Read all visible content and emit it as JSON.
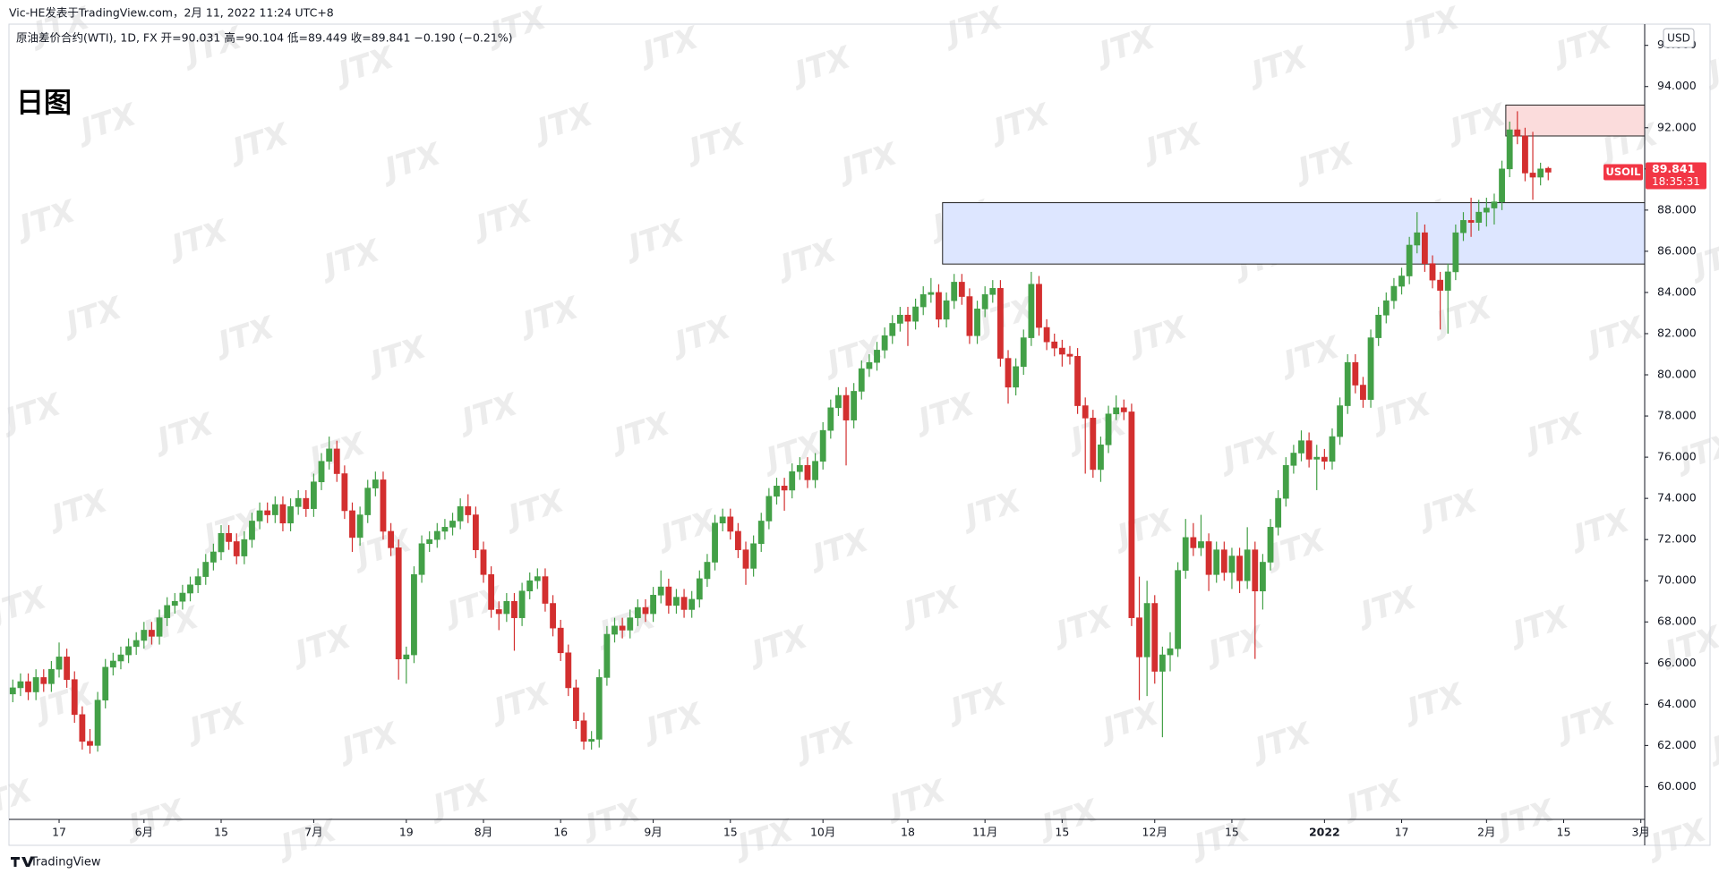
{
  "header": {
    "byline": "Vic-HE发表于TradingView.com，2月 11, 2022 11:24 UTC+8",
    "symbol_line": "原油差价合约(WTI), 1D, FX  开=90.031  高=90.104  低=89.449  收=89.841  −0.190 (−0.21%)"
  },
  "chart_data": {
    "type": "candlestick",
    "title": "日图",
    "symbol": "USOIL",
    "currency": "USD",
    "watermark": "JTX",
    "branding": "TradingView",
    "up_color": "#43a047",
    "down_color": "#d32f2f",
    "ylim": [
      58.41,
      97.03
    ],
    "yticks": [
      {
        "value": 60,
        "label": "60.000"
      },
      {
        "value": 62,
        "label": "62.000"
      },
      {
        "value": 64,
        "label": "64.000"
      },
      {
        "value": 66,
        "label": "66.000"
      },
      {
        "value": 68,
        "label": "68.000"
      },
      {
        "value": 70,
        "label": "70.000"
      },
      {
        "value": 72,
        "label": "72.000"
      },
      {
        "value": 74,
        "label": "74.000"
      },
      {
        "value": 76,
        "label": "76.000"
      },
      {
        "value": 78,
        "label": "78.000"
      },
      {
        "value": 80,
        "label": "80.000"
      },
      {
        "value": 82,
        "label": "82.000"
      },
      {
        "value": 84,
        "label": "84.000"
      },
      {
        "value": 86,
        "label": "86.000"
      },
      {
        "value": 88,
        "label": "88.000"
      },
      {
        "value": 90,
        "label": "90.000"
      },
      {
        "value": 92,
        "label": "92.000"
      },
      {
        "value": 94,
        "label": "94.000"
      },
      {
        "value": 96,
        "label": "96.000"
      }
    ],
    "last_price": {
      "value": 89.841,
      "countdown": "18:35:31",
      "color": "#f23645"
    },
    "zones": [
      {
        "start": 121,
        "top": 88.36,
        "bottom": 85.38,
        "color": "#dde6ff"
      },
      {
        "start": 194,
        "top": 93.1,
        "bottom": 91.6,
        "color": "#fbdcdc"
      }
    ],
    "categories": [
      null,
      null,
      null,
      null,
      null,
      null,
      "17",
      null,
      null,
      null,
      null,
      null,
      null,
      null,
      null,
      null,
      null,
      "6月",
      null,
      null,
      null,
      null,
      null,
      null,
      null,
      null,
      null,
      "15",
      null,
      null,
      null,
      null,
      null,
      null,
      null,
      null,
      null,
      null,
      null,
      "7月",
      null,
      null,
      null,
      null,
      null,
      null,
      null,
      null,
      null,
      null,
      null,
      "19",
      null,
      null,
      null,
      null,
      null,
      null,
      null,
      null,
      null,
      "8月",
      null,
      null,
      null,
      null,
      null,
      null,
      null,
      null,
      null,
      "16",
      null,
      null,
      null,
      null,
      null,
      null,
      null,
      null,
      null,
      null,
      null,
      "9月",
      null,
      null,
      null,
      null,
      null,
      null,
      null,
      null,
      null,
      "15",
      null,
      null,
      null,
      null,
      null,
      null,
      null,
      null,
      null,
      null,
      null,
      "10月",
      null,
      null,
      null,
      null,
      null,
      null,
      null,
      null,
      null,
      null,
      "18",
      null,
      null,
      null,
      null,
      null,
      null,
      null,
      null,
      null,
      "11月",
      null,
      null,
      null,
      null,
      null,
      null,
      null,
      null,
      null,
      "15",
      null,
      null,
      null,
      null,
      null,
      null,
      null,
      null,
      null,
      null,
      null,
      "12月",
      null,
      null,
      null,
      null,
      null,
      null,
      null,
      null,
      null,
      "15",
      null,
      null,
      null,
      null,
      null,
      null,
      null,
      null,
      null,
      null,
      null,
      "2022",
      null,
      null,
      null,
      null,
      null,
      null,
      null,
      null,
      null,
      "17",
      null,
      null,
      null,
      null,
      null,
      null,
      null,
      null,
      null,
      null,
      "2月",
      null,
      null,
      null,
      null,
      null,
      null,
      null,
      null,
      null,
      "15",
      null,
      null,
      null,
      null,
      null,
      null,
      null,
      null,
      null,
      "3月"
    ],
    "candles": [
      [
        64.5,
        65.2,
        64.1,
        64.8
      ],
      [
        64.8,
        65.5,
        64.4,
        65.1
      ],
      [
        65.1,
        65.5,
        64.2,
        64.6
      ],
      [
        64.6,
        65.7,
        64.2,
        65.3
      ],
      [
        65.3,
        65.7,
        64.6,
        65.0
      ],
      [
        65.0,
        66.1,
        64.6,
        65.7
      ],
      [
        65.7,
        67.0,
        65.3,
        66.3
      ],
      [
        66.3,
        66.7,
        64.8,
        65.2
      ],
      [
        65.2,
        65.6,
        63.1,
        63.5
      ],
      [
        63.5,
        63.9,
        61.8,
        62.2
      ],
      [
        62.2,
        62.8,
        61.6,
        62.0
      ],
      [
        62.0,
        64.6,
        61.7,
        64.2
      ],
      [
        64.2,
        66.2,
        63.8,
        65.8
      ],
      [
        65.8,
        66.5,
        65.4,
        66.1
      ],
      [
        66.1,
        66.8,
        65.7,
        66.4
      ],
      [
        66.4,
        67.2,
        66.0,
        66.8
      ],
      [
        66.8,
        67.5,
        66.4,
        67.1
      ],
      [
        67.1,
        68.0,
        66.7,
        67.6
      ],
      [
        67.6,
        68.0,
        66.9,
        67.3
      ],
      [
        67.3,
        68.6,
        66.9,
        68.2
      ],
      [
        68.2,
        69.2,
        67.8,
        68.8
      ],
      [
        68.8,
        69.4,
        68.4,
        69.0
      ],
      [
        69.0,
        69.8,
        68.6,
        69.4
      ],
      [
        69.4,
        70.2,
        69.0,
        69.8
      ],
      [
        69.8,
        70.6,
        69.4,
        70.2
      ],
      [
        70.2,
        71.3,
        69.8,
        70.9
      ],
      [
        70.9,
        71.8,
        70.5,
        71.4
      ],
      [
        71.4,
        72.7,
        71.0,
        72.3
      ],
      [
        72.3,
        72.7,
        71.5,
        71.9
      ],
      [
        71.9,
        72.3,
        70.8,
        71.2
      ],
      [
        71.2,
        72.4,
        70.8,
        72.0
      ],
      [
        72.0,
        73.3,
        71.6,
        72.9
      ],
      [
        72.9,
        73.8,
        72.5,
        73.4
      ],
      [
        73.4,
        73.8,
        72.8,
        73.2
      ],
      [
        73.2,
        74.1,
        72.8,
        73.7
      ],
      [
        73.7,
        74.1,
        72.4,
        72.8
      ],
      [
        72.8,
        74.0,
        72.4,
        73.6
      ],
      [
        73.6,
        74.4,
        73.2,
        74.0
      ],
      [
        74.0,
        74.4,
        73.1,
        73.5
      ],
      [
        73.5,
        75.2,
        73.1,
        74.8
      ],
      [
        74.8,
        76.2,
        74.4,
        75.8
      ],
      [
        75.8,
        77.0,
        75.4,
        76.4
      ],
      [
        76.4,
        76.8,
        74.8,
        75.2
      ],
      [
        75.2,
        75.6,
        73.0,
        73.4
      ],
      [
        73.4,
        73.8,
        71.4,
        72.1
      ],
      [
        72.1,
        73.6,
        71.7,
        73.2
      ],
      [
        73.2,
        74.9,
        72.8,
        74.5
      ],
      [
        74.5,
        75.3,
        74.1,
        74.9
      ],
      [
        74.9,
        75.3,
        72.0,
        72.4
      ],
      [
        72.4,
        72.8,
        71.2,
        71.6
      ],
      [
        71.6,
        72.0,
        65.2,
        66.2
      ],
      [
        66.2,
        66.8,
        65.0,
        66.4
      ],
      [
        66.4,
        70.7,
        66.0,
        70.3
      ],
      [
        70.3,
        72.2,
        69.9,
        71.8
      ],
      [
        71.8,
        72.4,
        71.4,
        72.0
      ],
      [
        72.0,
        72.8,
        71.6,
        72.4
      ],
      [
        72.4,
        73.0,
        72.0,
        72.6
      ],
      [
        72.6,
        73.3,
        72.2,
        72.9
      ],
      [
        72.9,
        74.0,
        72.5,
        73.6
      ],
      [
        73.6,
        74.2,
        72.8,
        73.2
      ],
      [
        73.2,
        73.6,
        71.1,
        71.5
      ],
      [
        71.5,
        71.9,
        69.9,
        70.3
      ],
      [
        70.3,
        70.7,
        68.2,
        68.6
      ],
      [
        68.6,
        69.0,
        67.6,
        68.4
      ],
      [
        68.4,
        69.4,
        68.0,
        69.0
      ],
      [
        69.0,
        69.4,
        66.6,
        68.2
      ],
      [
        68.2,
        69.9,
        67.8,
        69.5
      ],
      [
        69.5,
        70.4,
        69.1,
        70.0
      ],
      [
        70.0,
        70.6,
        69.6,
        70.2
      ],
      [
        70.2,
        70.6,
        68.5,
        68.9
      ],
      [
        68.9,
        69.3,
        67.3,
        67.7
      ],
      [
        67.7,
        68.1,
        66.1,
        66.5
      ],
      [
        66.5,
        66.9,
        64.4,
        64.8
      ],
      [
        64.8,
        65.2,
        62.8,
        63.2
      ],
      [
        63.2,
        63.6,
        61.8,
        62.2
      ],
      [
        62.2,
        62.7,
        61.8,
        62.3
      ],
      [
        62.3,
        65.7,
        61.9,
        65.3
      ],
      [
        65.3,
        67.8,
        64.9,
        67.4
      ],
      [
        67.4,
        68.2,
        67.0,
        67.8
      ],
      [
        67.8,
        68.2,
        67.2,
        67.6
      ],
      [
        67.6,
        68.6,
        67.2,
        68.2
      ],
      [
        68.2,
        69.1,
        67.8,
        68.7
      ],
      [
        68.7,
        69.1,
        68.0,
        68.4
      ],
      [
        68.4,
        69.7,
        68.0,
        69.3
      ],
      [
        69.3,
        70.5,
        68.9,
        69.7
      ],
      [
        69.7,
        70.1,
        68.4,
        68.8
      ],
      [
        68.8,
        69.6,
        68.4,
        69.2
      ],
      [
        69.2,
        69.6,
        68.2,
        68.6
      ],
      [
        68.6,
        69.5,
        68.2,
        69.1
      ],
      [
        69.1,
        70.5,
        68.7,
        70.1
      ],
      [
        70.1,
        71.3,
        69.7,
        70.9
      ],
      [
        70.9,
        73.2,
        70.5,
        72.8
      ],
      [
        72.8,
        73.5,
        72.4,
        73.1
      ],
      [
        73.1,
        73.5,
        72.0,
        72.4
      ],
      [
        72.4,
        72.8,
        71.1,
        71.5
      ],
      [
        71.5,
        71.9,
        69.8,
        70.6
      ],
      [
        70.6,
        72.2,
        70.2,
        71.8
      ],
      [
        71.8,
        73.3,
        71.4,
        72.9
      ],
      [
        72.9,
        74.5,
        72.5,
        74.1
      ],
      [
        74.1,
        75.0,
        73.7,
        74.6
      ],
      [
        74.6,
        75.0,
        73.4,
        74.4
      ],
      [
        74.4,
        75.7,
        74.0,
        75.3
      ],
      [
        75.3,
        76.0,
        74.9,
        75.6
      ],
      [
        75.6,
        76.0,
        74.5,
        74.9
      ],
      [
        74.9,
        76.2,
        74.5,
        75.8
      ],
      [
        75.8,
        77.7,
        75.4,
        77.3
      ],
      [
        77.3,
        78.8,
        76.9,
        78.4
      ],
      [
        78.4,
        79.4,
        78.0,
        79.0
      ],
      [
        79.0,
        79.4,
        75.6,
        77.8
      ],
      [
        77.8,
        79.6,
        77.4,
        79.2
      ],
      [
        79.2,
        80.7,
        78.8,
        80.3
      ],
      [
        80.3,
        81.0,
        79.9,
        80.6
      ],
      [
        80.6,
        81.6,
        80.2,
        81.2
      ],
      [
        81.2,
        82.3,
        80.8,
        81.9
      ],
      [
        81.9,
        82.9,
        81.5,
        82.5
      ],
      [
        82.5,
        83.3,
        82.1,
        82.9
      ],
      [
        82.9,
        83.3,
        81.4,
        82.6
      ],
      [
        82.6,
        83.7,
        82.2,
        83.3
      ],
      [
        83.3,
        84.3,
        82.9,
        83.9
      ],
      [
        83.9,
        84.7,
        83.5,
        84.0
      ],
      [
        84.0,
        84.4,
        82.3,
        82.7
      ],
      [
        82.7,
        84.0,
        82.3,
        83.6
      ],
      [
        83.6,
        84.9,
        83.2,
        84.5
      ],
      [
        84.5,
        84.9,
        83.4,
        83.8
      ],
      [
        83.8,
        84.2,
        81.5,
        81.9
      ],
      [
        81.9,
        83.6,
        81.5,
        83.2
      ],
      [
        83.2,
        84.3,
        82.8,
        83.9
      ],
      [
        83.9,
        84.6,
        83.5,
        84.2
      ],
      [
        84.2,
        84.6,
        80.4,
        80.8
      ],
      [
        80.8,
        81.2,
        78.6,
        79.4
      ],
      [
        79.4,
        80.8,
        79.0,
        80.4
      ],
      [
        80.4,
        82.2,
        80.0,
        81.8
      ],
      [
        81.8,
        85.0,
        81.4,
        84.4
      ],
      [
        84.4,
        84.8,
        81.9,
        82.3
      ],
      [
        82.3,
        82.7,
        81.2,
        81.6
      ],
      [
        81.6,
        82.0,
        80.9,
        81.3
      ],
      [
        81.3,
        81.7,
        80.4,
        81.0
      ],
      [
        81.0,
        81.4,
        80.5,
        80.9
      ],
      [
        80.9,
        81.3,
        78.1,
        78.5
      ],
      [
        78.5,
        78.9,
        75.2,
        77.9
      ],
      [
        77.9,
        78.3,
        75.0,
        75.4
      ],
      [
        75.4,
        77.0,
        74.8,
        76.6
      ],
      [
        76.6,
        78.5,
        76.2,
        78.1
      ],
      [
        78.1,
        79.0,
        77.8,
        78.4
      ],
      [
        78.4,
        78.8,
        77.8,
        78.2
      ],
      [
        78.2,
        78.6,
        67.8,
        68.2
      ],
      [
        68.2,
        70.2,
        64.2,
        66.3
      ],
      [
        66.3,
        70.0,
        64.4,
        68.9
      ],
      [
        68.9,
        69.3,
        65.0,
        65.6
      ],
      [
        65.6,
        66.8,
        62.4,
        66.4
      ],
      [
        66.4,
        67.5,
        65.6,
        66.7
      ],
      [
        66.7,
        70.9,
        66.3,
        70.5
      ],
      [
        70.5,
        73.0,
        70.1,
        72.1
      ],
      [
        72.1,
        72.8,
        71.2,
        71.6
      ],
      [
        71.6,
        73.2,
        71.2,
        71.9
      ],
      [
        71.9,
        72.3,
        69.5,
        70.3
      ],
      [
        70.3,
        71.9,
        69.9,
        71.5
      ],
      [
        71.5,
        71.9,
        70.0,
        70.4
      ],
      [
        70.4,
        71.6,
        69.6,
        71.2
      ],
      [
        71.2,
        71.6,
        69.4,
        70.0
      ],
      [
        70.0,
        72.6,
        69.6,
        71.5
      ],
      [
        71.5,
        71.9,
        66.2,
        69.5
      ],
      [
        69.5,
        71.3,
        68.6,
        70.9
      ],
      [
        70.9,
        73.0,
        70.5,
        72.6
      ],
      [
        72.6,
        74.4,
        72.2,
        74.0
      ],
      [
        74.0,
        76.0,
        73.6,
        75.6
      ],
      [
        75.6,
        76.6,
        75.2,
        76.2
      ],
      [
        76.2,
        77.3,
        75.8,
        76.8
      ],
      [
        76.8,
        77.2,
        75.5,
        75.9
      ],
      [
        75.9,
        76.6,
        74.4,
        76.0
      ],
      [
        76.0,
        76.4,
        75.4,
        75.8
      ],
      [
        75.8,
        77.4,
        75.4,
        77.0
      ],
      [
        77.0,
        78.9,
        76.6,
        78.5
      ],
      [
        78.5,
        81.0,
        78.1,
        80.6
      ],
      [
        80.6,
        81.0,
        79.1,
        79.5
      ],
      [
        79.5,
        79.9,
        78.4,
        78.8
      ],
      [
        78.8,
        82.2,
        78.4,
        81.8
      ],
      [
        81.8,
        83.3,
        81.4,
        82.9
      ],
      [
        82.9,
        84.0,
        82.5,
        83.6
      ],
      [
        83.6,
        84.7,
        83.2,
        84.3
      ],
      [
        84.3,
        85.2,
        83.9,
        84.8
      ],
      [
        84.8,
        86.7,
        84.4,
        86.3
      ],
      [
        86.3,
        87.9,
        85.9,
        86.9
      ],
      [
        86.9,
        87.3,
        85.0,
        85.4
      ],
      [
        85.4,
        85.8,
        84.2,
        84.6
      ],
      [
        84.6,
        85.0,
        82.2,
        84.1
      ],
      [
        84.1,
        85.4,
        82.0,
        85.0
      ],
      [
        85.0,
        87.3,
        84.6,
        86.9
      ],
      [
        86.9,
        87.9,
        86.5,
        87.5
      ],
      [
        87.5,
        88.6,
        86.7,
        87.4
      ],
      [
        87.4,
        88.5,
        87.0,
        87.9
      ],
      [
        87.9,
        88.6,
        87.2,
        88.1
      ],
      [
        88.1,
        88.8,
        87.3,
        88.4
      ],
      [
        88.4,
        90.4,
        88.0,
        90.0
      ],
      [
        90.0,
        92.3,
        89.6,
        91.9
      ],
      [
        91.9,
        92.8,
        91.2,
        91.6
      ],
      [
        91.6,
        92.0,
        89.4,
        89.8
      ],
      [
        89.8,
        91.8,
        88.5,
        89.6
      ],
      [
        89.6,
        90.3,
        89.2,
        90.0
      ],
      [
        90.031,
        90.104,
        89.449,
        89.841
      ],
      null,
      null,
      null,
      null,
      null,
      null,
      null,
      null,
      null,
      null,
      null,
      null
    ]
  }
}
